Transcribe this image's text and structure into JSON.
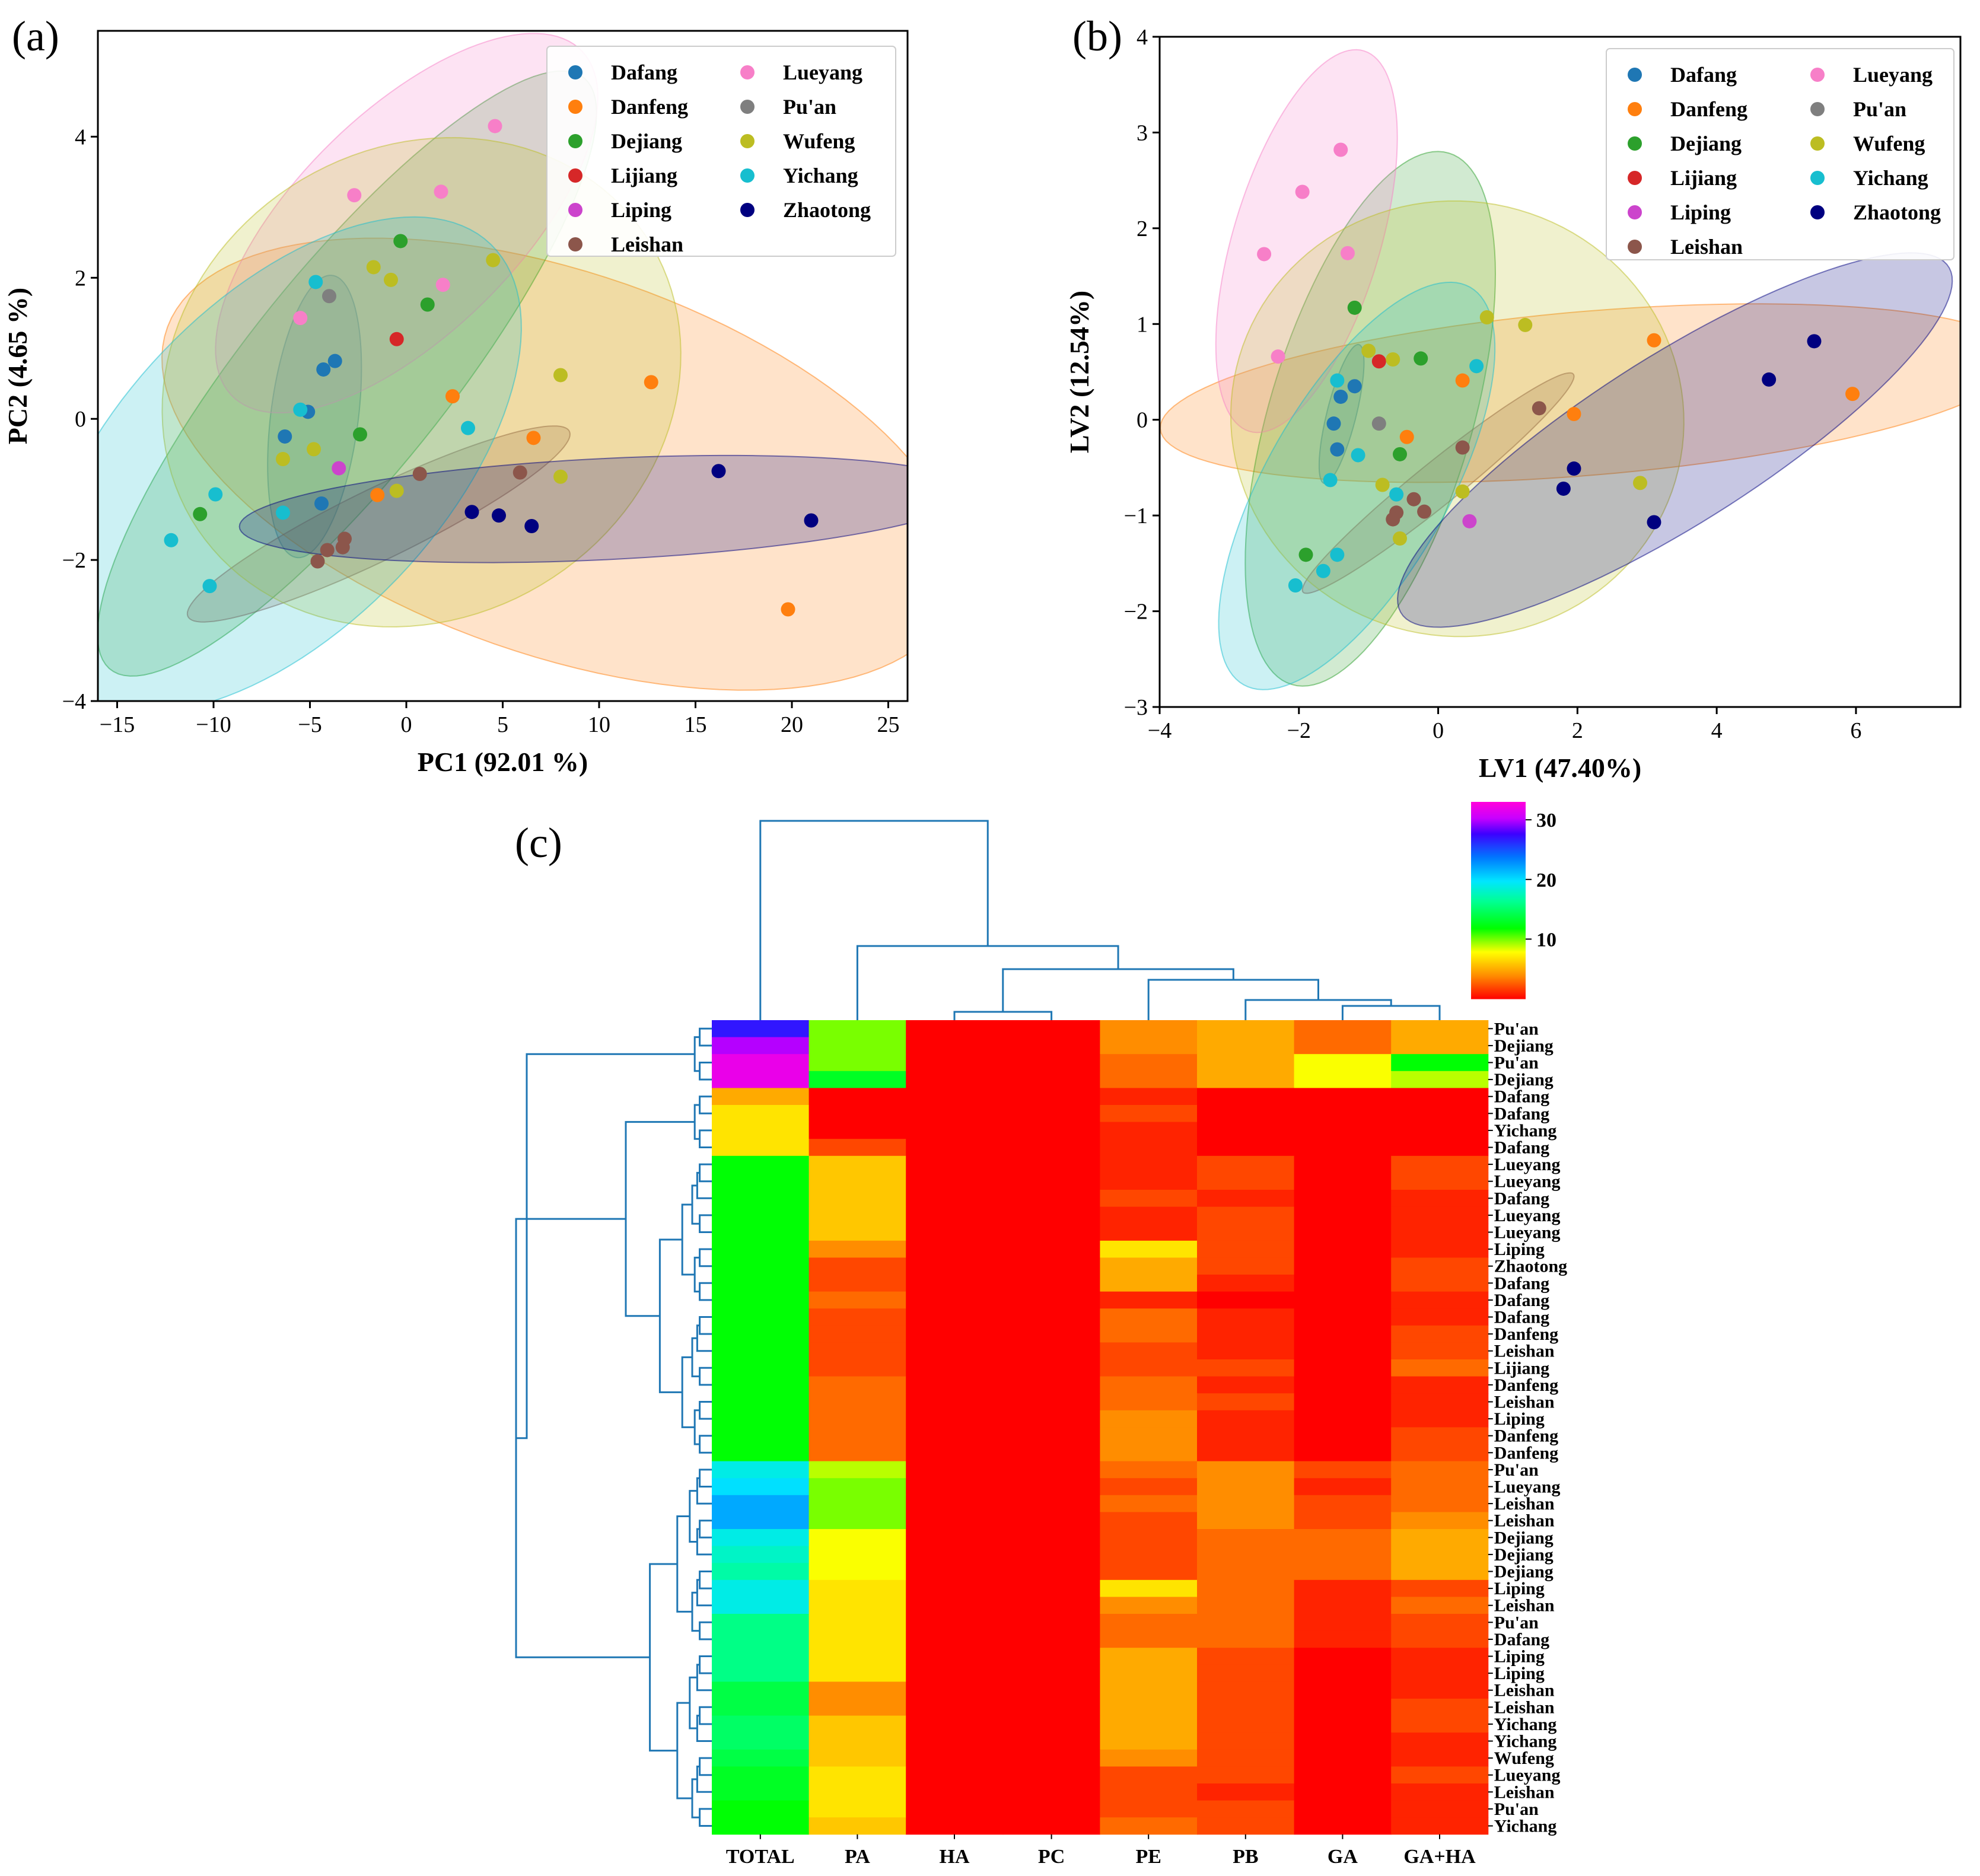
{
  "panels": {
    "a": "(a)",
    "b": "(b)",
    "c": "(c)"
  },
  "regions": [
    "Dafang",
    "Danfeng",
    "Dejiang",
    "Lijiang",
    "Liping",
    "Leishan",
    "Lueyang",
    "Pu'an",
    "Wufeng",
    "Yichang",
    "Zhaotong"
  ],
  "colors": {
    "Dafang": "#1f77b4",
    "Danfeng": "#ff7f0e",
    "Dejiang": "#2ca02c",
    "Lijiang": "#d62728",
    "Liping": "#e377c2",
    "Leishan": "#8c564b",
    "Lueyang": "#f77fc8",
    "Pu'an": "#7f7f7f",
    "Wufeng": "#bcbd22",
    "Yichang": "#17becf",
    "Zhaotong": "#000080",
    "liping_marker": "#cc44cc",
    "dendro": "#1f77b4"
  },
  "chart_data": [
    {
      "id": "a",
      "type": "scatter",
      "title": "",
      "xlabel": "PC1 (92.01 %)",
      "ylabel": "PC2 (4.65 %)",
      "xlim": [
        -16,
        26
      ],
      "ylim": [
        -4,
        5.5
      ],
      "xticks": [
        -15,
        -10,
        -5,
        0,
        5,
        10,
        15,
        20,
        25
      ],
      "yticks": [
        -4,
        -2,
        0,
        2,
        4
      ],
      "legend_position": "top-right",
      "series": [
        {
          "name": "Dafang",
          "points": [
            [
              -4.3,
              0.7
            ],
            [
              -3.7,
              0.82
            ],
            [
              -5.1,
              0.1
            ],
            [
              -6.3,
              -0.25
            ],
            [
              -4.4,
              -1.2
            ]
          ]
        },
        {
          "name": "Danfeng",
          "points": [
            [
              12.7,
              0.52
            ],
            [
              2.4,
              0.32
            ],
            [
              6.6,
              -0.27
            ],
            [
              -1.5,
              -1.08
            ],
            [
              19.8,
              -2.7
            ]
          ]
        },
        {
          "name": "Dejiang",
          "points": [
            [
              -0.3,
              2.52
            ],
            [
              1.1,
              1.62
            ],
            [
              -2.4,
              -0.22
            ],
            [
              -10.7,
              -1.35
            ]
          ]
        },
        {
          "name": "Lijiang",
          "points": [
            [
              -0.5,
              1.13
            ]
          ]
        },
        {
          "name": "Liping",
          "points": [
            [
              -3.5,
              -0.7
            ]
          ]
        },
        {
          "name": "Leishan",
          "points": [
            [
              0.7,
              -0.78
            ],
            [
              5.9,
              -0.76
            ],
            [
              -3.2,
              -1.7
            ],
            [
              -3.3,
              -1.82
            ],
            [
              -4.1,
              -1.86
            ],
            [
              -4.6,
              -2.02
            ]
          ]
        },
        {
          "name": "Lueyang",
          "points": [
            [
              4.6,
              4.15
            ],
            [
              -2.7,
              3.17
            ],
            [
              1.8,
              3.22
            ],
            [
              1.9,
              1.9
            ],
            [
              -5.5,
              1.43
            ]
          ]
        },
        {
          "name": "Pu'an",
          "points": [
            [
              -4.0,
              1.74
            ]
          ]
        },
        {
          "name": "Wufeng",
          "points": [
            [
              -1.7,
              2.15
            ],
            [
              -0.8,
              1.97
            ],
            [
              4.5,
              2.25
            ],
            [
              8.0,
              0.62
            ],
            [
              -4.8,
              -0.43
            ],
            [
              -6.4,
              -0.57
            ],
            [
              -0.5,
              -1.02
            ],
            [
              8.0,
              -0.82
            ]
          ]
        },
        {
          "name": "Yichang",
          "points": [
            [
              -4.7,
              1.94
            ],
            [
              -5.5,
              0.13
            ],
            [
              3.2,
              -0.13
            ],
            [
              -9.9,
              -1.07
            ],
            [
              -6.4,
              -1.33
            ],
            [
              -12.2,
              -1.72
            ],
            [
              -10.2,
              -2.37
            ]
          ]
        },
        {
          "name": "Zhaotong",
          "points": [
            [
              16.2,
              -0.74
            ],
            [
              3.4,
              -1.32
            ],
            [
              4.8,
              -1.37
            ],
            [
              6.5,
              -1.52
            ],
            [
              21.0,
              -1.44
            ]
          ]
        }
      ]
    },
    {
      "id": "b",
      "type": "scatter",
      "title": "",
      "xlabel": "LV1 (47.40%)",
      "ylabel": "LV2 (12.54%)",
      "xlim": [
        -4,
        7.5
      ],
      "ylim": [
        -3,
        4
      ],
      "xticks": [
        -4,
        -2,
        0,
        2,
        4,
        6
      ],
      "yticks": [
        -3,
        -2,
        -1,
        0,
        1,
        2,
        3,
        4
      ],
      "legend_position": "top-right",
      "series": [
        {
          "name": "Dafang",
          "points": [
            [
              -1.2,
              0.35
            ],
            [
              -1.4,
              0.24
            ],
            [
              -1.5,
              -0.04
            ],
            [
              -1.45,
              -0.31
            ]
          ]
        },
        {
          "name": "Danfeng",
          "points": [
            [
              3.1,
              0.83
            ],
            [
              0.35,
              0.41
            ],
            [
              1.95,
              0.06
            ],
            [
              -0.45,
              -0.18
            ],
            [
              5.95,
              0.27
            ]
          ]
        },
        {
          "name": "Dejiang",
          "points": [
            [
              -1.2,
              1.17
            ],
            [
              -0.25,
              0.64
            ],
            [
              -0.55,
              -0.36
            ],
            [
              -1.9,
              -1.41
            ]
          ]
        },
        {
          "name": "Lijiang",
          "points": [
            [
              -0.85,
              0.61
            ]
          ]
        },
        {
          "name": "Liping",
          "points": [
            [
              0.45,
              -1.06
            ]
          ]
        },
        {
          "name": "Leishan",
          "points": [
            [
              1.45,
              0.12
            ],
            [
              0.35,
              -0.29
            ],
            [
              -0.35,
              -0.83
            ],
            [
              -0.6,
              -0.97
            ],
            [
              -0.65,
              -1.04
            ],
            [
              -0.2,
              -0.96
            ]
          ]
        },
        {
          "name": "Lueyang",
          "points": [
            [
              -1.4,
              2.82
            ],
            [
              -1.95,
              2.38
            ],
            [
              -2.5,
              1.73
            ],
            [
              -1.3,
              1.74
            ],
            [
              -2.3,
              0.66
            ]
          ]
        },
        {
          "name": "Pu'an",
          "points": [
            [
              -0.85,
              -0.04
            ]
          ]
        },
        {
          "name": "Wufeng",
          "points": [
            [
              -1.0,
              0.72
            ],
            [
              -0.65,
              0.63
            ],
            [
              0.7,
              1.07
            ],
            [
              1.25,
              0.99
            ],
            [
              2.9,
              -0.66
            ],
            [
              0.35,
              -0.75
            ],
            [
              -0.8,
              -0.68
            ],
            [
              -0.55,
              -1.24
            ]
          ]
        },
        {
          "name": "Yichang",
          "points": [
            [
              0.55,
              0.56
            ],
            [
              -1.45,
              0.41
            ],
            [
              -1.15,
              -0.37
            ],
            [
              -0.6,
              -0.78
            ],
            [
              -1.55,
              -0.63
            ],
            [
              -1.45,
              -1.41
            ],
            [
              -1.65,
              -1.58
            ],
            [
              -2.05,
              -1.73
            ]
          ]
        },
        {
          "name": "Zhaotong",
          "points": [
            [
              5.4,
              0.82
            ],
            [
              4.75,
              0.42
            ],
            [
              1.95,
              -0.51
            ],
            [
              1.8,
              -0.72
            ],
            [
              3.1,
              -1.07
            ]
          ]
        }
      ]
    },
    {
      "id": "c",
      "type": "heatmap",
      "title": "",
      "columns": [
        "TOTAL",
        "PA",
        "HA",
        "PC",
        "PE",
        "PB",
        "GA",
        "GA+HA"
      ],
      "rows": [
        "Pu'an",
        "Dejiang",
        "Pu'an",
        "Dejiang",
        "Dafang",
        "Dafang",
        "Yichang",
        "Dafang",
        "Lueyang",
        "Lueyang",
        "Dafang",
        "Lueyang",
        "Lueyang",
        "Liping",
        "Zhaotong",
        "Dafang",
        "Dafang",
        "Dafang",
        "Danfeng",
        "Leishan",
        "Lijiang",
        "Danfeng",
        "Leishan",
        "Liping",
        "Danfeng",
        "Danfeng",
        "Pu'an",
        "Lueyang",
        "Leishan",
        "Leishan",
        "Dejiang",
        "Dejiang",
        "Dejiang",
        "Liping",
        "Leishan",
        "Pu'an",
        "Dafang",
        "Liping",
        "Liping",
        "Leishan",
        "Leishan",
        "Yichang",
        "Yichang",
        "Wufeng",
        "Lueyang",
        "Leishan",
        "Pu'an",
        "Yichang"
      ],
      "values": [
        [
          27,
          10,
          0,
          0,
          4,
          5,
          3,
          5
        ],
        [
          30,
          10,
          0,
          0,
          4,
          5,
          3,
          5
        ],
        [
          32,
          10,
          0,
          0,
          3,
          5,
          8,
          12
        ],
        [
          32,
          13,
          0,
          0,
          3,
          5,
          8,
          9
        ],
        [
          5,
          0,
          0,
          0,
          1,
          0,
          0,
          0
        ],
        [
          7,
          0,
          0,
          0,
          2,
          0,
          0,
          0
        ],
        [
          7,
          0,
          0,
          0,
          1,
          0,
          0,
          0
        ],
        [
          7,
          2,
          0,
          0,
          1,
          0,
          0,
          0
        ],
        [
          12,
          6,
          0,
          0,
          1,
          2,
          0,
          2
        ],
        [
          12,
          6,
          0,
          0,
          1,
          2,
          0,
          2
        ],
        [
          12,
          6,
          0,
          0,
          2,
          1,
          0,
          1
        ],
        [
          12,
          6,
          0,
          0,
          1,
          2,
          0,
          1
        ],
        [
          12,
          6,
          0,
          0,
          1,
          2,
          0,
          1
        ],
        [
          12,
          4,
          0,
          0,
          7,
          2,
          0,
          1
        ],
        [
          12,
          2,
          0,
          0,
          5,
          2,
          0,
          2
        ],
        [
          12,
          2,
          0,
          0,
          5,
          1,
          0,
          2
        ],
        [
          12,
          3,
          0,
          0,
          1,
          0,
          0,
          1
        ],
        [
          12,
          2,
          0,
          0,
          3,
          1,
          0,
          1
        ],
        [
          12,
          2,
          0,
          0,
          3,
          1,
          0,
          2
        ],
        [
          12,
          2,
          0,
          0,
          2,
          1,
          0,
          2
        ],
        [
          12,
          2,
          0,
          0,
          2,
          2,
          0,
          3
        ],
        [
          12,
          3,
          0,
          0,
          3,
          1,
          0,
          1
        ],
        [
          12,
          3,
          0,
          0,
          3,
          2,
          0,
          1
        ],
        [
          12,
          3,
          0,
          0,
          4,
          1,
          0,
          1
        ],
        [
          12,
          3,
          0,
          0,
          4,
          1,
          0,
          2
        ],
        [
          12,
          3,
          0,
          0,
          4,
          1,
          0,
          2
        ],
        [
          19,
          9,
          0,
          0,
          3,
          4,
          2,
          3
        ],
        [
          20,
          10,
          0,
          0,
          2,
          4,
          1,
          3
        ],
        [
          22,
          10,
          0,
          0,
          3,
          4,
          2,
          3
        ],
        [
          22,
          10,
          0,
          0,
          2,
          4,
          2,
          4
        ],
        [
          19,
          8,
          0,
          0,
          2,
          3,
          3,
          5
        ],
        [
          18,
          8,
          0,
          0,
          2,
          3,
          3,
          5
        ],
        [
          17,
          8,
          0,
          0,
          2,
          3,
          3,
          5
        ],
        [
          19,
          7,
          0,
          0,
          7,
          3,
          1,
          2
        ],
        [
          19,
          7,
          0,
          0,
          4,
          3,
          1,
          3
        ],
        [
          16,
          7,
          0,
          0,
          3,
          3,
          1,
          2
        ],
        [
          16,
          7,
          0,
          0,
          3,
          3,
          1,
          2
        ],
        [
          16,
          7,
          0,
          0,
          5,
          2,
          0,
          1
        ],
        [
          16,
          7,
          0,
          0,
          5,
          2,
          0,
          1
        ],
        [
          14,
          4,
          0,
          0,
          5,
          2,
          0,
          1
        ],
        [
          14,
          4,
          0,
          0,
          5,
          2,
          0,
          2
        ],
        [
          15,
          6,
          0,
          0,
          5,
          2,
          0,
          2
        ],
        [
          15,
          6,
          0,
          0,
          5,
          2,
          0,
          1
        ],
        [
          14,
          6,
          0,
          0,
          4,
          2,
          0,
          1
        ],
        [
          13,
          7,
          0,
          0,
          2,
          2,
          0,
          2
        ],
        [
          13,
          7,
          0,
          0,
          2,
          1,
          0,
          1
        ],
        [
          12,
          7,
          0,
          0,
          2,
          2,
          0,
          1
        ],
        [
          12,
          6,
          0,
          0,
          3,
          2,
          0,
          1
        ]
      ],
      "colorbar": {
        "ticks": [
          10,
          20,
          30
        ],
        "range": [
          0,
          33
        ]
      }
    }
  ]
}
